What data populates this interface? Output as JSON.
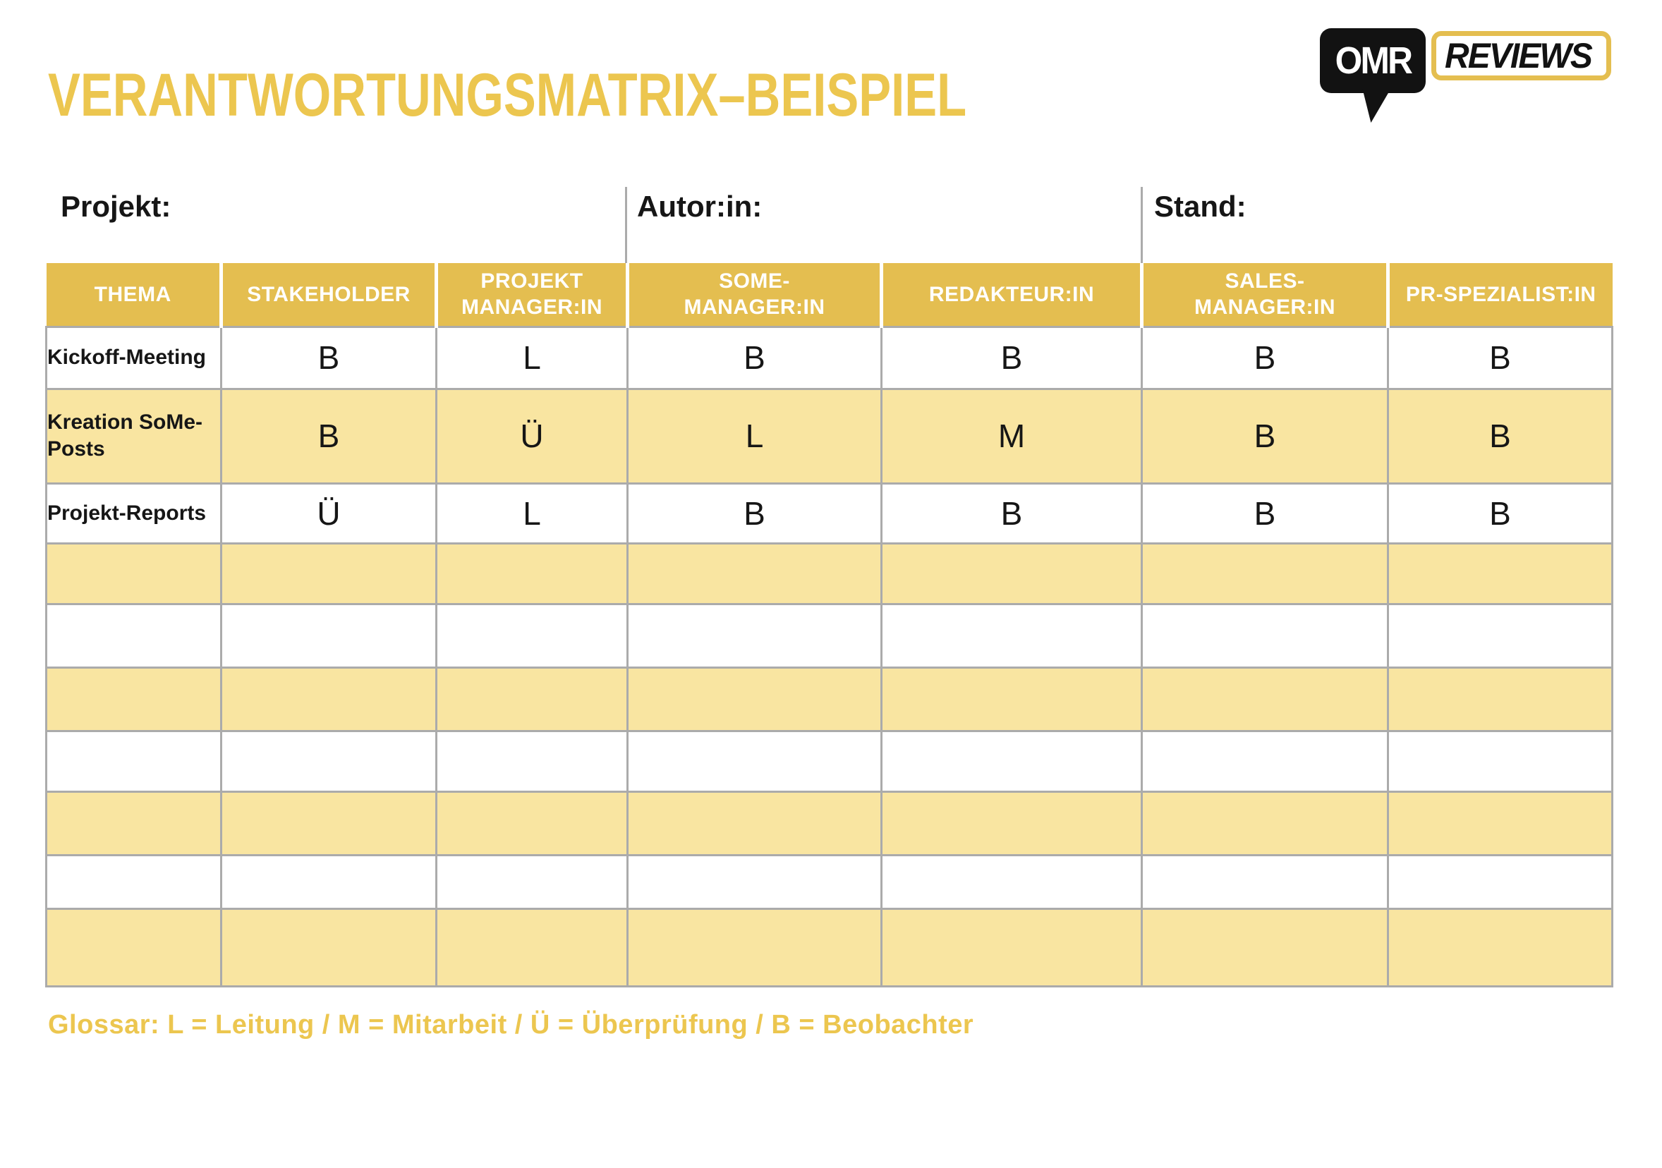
{
  "logo": {
    "omr": "OMR",
    "reviews": "REVIEWS"
  },
  "title": "VERANTWORTUNGSMATRIX–BEISPIEL",
  "info_bar": {
    "project_label": "Projekt:",
    "author_label": "Autor:in:",
    "date_label": "Stand:"
  },
  "table": {
    "columns": [
      "THEMA",
      "STAKEHOLDER",
      "PROJEKT\nMANAGER:IN",
      "SOME-\nMANAGER:IN",
      "REDAKTEUR:IN",
      "SALES-\nMANAGER:IN",
      "PR-SPEZIALIST:IN"
    ],
    "rows": [
      {
        "thema": "Kickoff-Meeting",
        "values": [
          "B",
          "L",
          "B",
          "B",
          "B",
          "B"
        ]
      },
      {
        "thema": "Kreation SoMe-Posts",
        "values": [
          "B",
          "Ü",
          "L",
          "M",
          "B",
          "B"
        ]
      },
      {
        "thema": "Projekt-Reports",
        "values": [
          "Ü",
          "L",
          "B",
          "B",
          "B",
          "B"
        ]
      }
    ],
    "empty_row_count": 7
  },
  "glossary": "Glossar: L = Leitung / M = Mitarbeit / Ü = Überprüfung / B = Beobachter",
  "colors": {
    "gold": "#E4BE50",
    "gold_text": "#ECC64F",
    "row_yellow": "#F9E5A1",
    "border_gray": "#ABABAB",
    "ink": "#161616"
  }
}
